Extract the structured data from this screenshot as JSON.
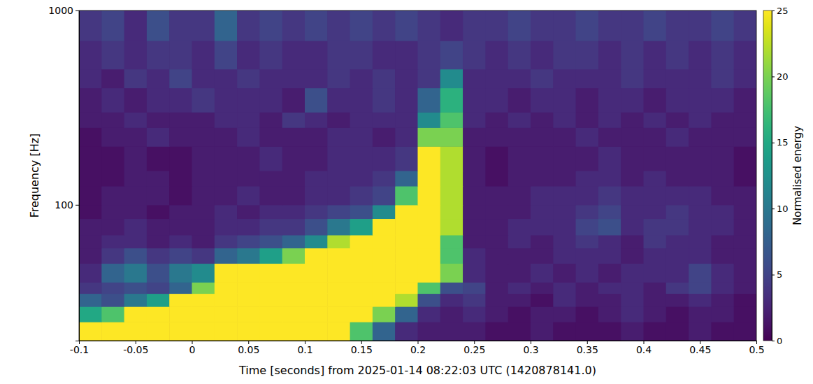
{
  "chart_data": {
    "type": "heatmap",
    "xlabel": "Time [seconds] from 2025-01-14 08:22:03 UTC (1420878141.0)",
    "ylabel": "Frequency [Hz]",
    "log": "y",
    "grid": false,
    "xlim": [
      -0.1,
      0.5
    ],
    "ylim": [
      20,
      1000
    ],
    "xticks": [
      -0.1,
      -0.05,
      0,
      0.05,
      0.1,
      0.15,
      0.2,
      0.25,
      0.3,
      0.35,
      0.4,
      0.45,
      0.5
    ],
    "yticks": [
      100,
      1000
    ],
    "x_edges": [
      -0.1,
      -0.08,
      -0.06,
      -0.04,
      -0.02,
      0,
      0.02,
      0.04,
      0.06,
      0.08,
      0.1,
      0.12,
      0.14,
      0.16,
      0.18,
      0.2,
      0.22,
      0.24,
      0.26,
      0.28,
      0.3,
      0.32,
      0.34,
      0.36,
      0.38,
      0.4,
      0.42,
      0.44,
      0.46,
      0.48,
      0.5
    ],
    "y_edges": [
      20,
      25,
      30,
      35,
      40,
      50,
      60,
      70,
      85,
      100,
      125,
      150,
      200,
      250,
      300,
      400,
      500,
      700,
      1000
    ],
    "z": [
      [
        25,
        25,
        25,
        25,
        25,
        25,
        25,
        25,
        25,
        25,
        25,
        25,
        18,
        8,
        3,
        2,
        2,
        2,
        1,
        1,
        2,
        1,
        1,
        1,
        2,
        1,
        1,
        2,
        1,
        1
      ],
      [
        15,
        18,
        25,
        25,
        25,
        25,
        25,
        25,
        25,
        25,
        25,
        25,
        25,
        20,
        8,
        3,
        2,
        3,
        2,
        1,
        2,
        2,
        1,
        2,
        3,
        2,
        1,
        2,
        2,
        1
      ],
      [
        8,
        6,
        10,
        14,
        25,
        25,
        25,
        25,
        25,
        25,
        25,
        25,
        25,
        25,
        22,
        6,
        3,
        4,
        2,
        2,
        1,
        3,
        2,
        2,
        3,
        2,
        2,
        3,
        2,
        1
      ],
      [
        4,
        5,
        6,
        5,
        8,
        20,
        25,
        25,
        25,
        25,
        25,
        25,
        25,
        25,
        25,
        18,
        6,
        5,
        2,
        3,
        2,
        3,
        2,
        3,
        3,
        2,
        4,
        5,
        3,
        2
      ],
      [
        3,
        8,
        10,
        6,
        10,
        12,
        25,
        25,
        25,
        25,
        25,
        25,
        25,
        25,
        25,
        25,
        20,
        3,
        2,
        2,
        3,
        2,
        3,
        2,
        3,
        3,
        3,
        5,
        3,
        2
      ],
      [
        2,
        4,
        6,
        4,
        5,
        4,
        8,
        10,
        14,
        20,
        25,
        25,
        25,
        25,
        25,
        25,
        18,
        3,
        2,
        2,
        2,
        3,
        3,
        3,
        2,
        3,
        3,
        3,
        2,
        2
      ],
      [
        2,
        3,
        3,
        2,
        3,
        2,
        4,
        5,
        6,
        8,
        12,
        22,
        25,
        25,
        25,
        25,
        18,
        2,
        2,
        3,
        2,
        3,
        4,
        3,
        2,
        4,
        3,
        3,
        2,
        2
      ],
      [
        2,
        2,
        3,
        2,
        2,
        2,
        3,
        3,
        4,
        4,
        6,
        10,
        14,
        25,
        25,
        25,
        22,
        2,
        2,
        3,
        3,
        3,
        5,
        6,
        3,
        4,
        4,
        3,
        3,
        2
      ],
      [
        1,
        2,
        2,
        1,
        2,
        2,
        3,
        2,
        3,
        3,
        4,
        5,
        6,
        12,
        25,
        25,
        22,
        2,
        2,
        2,
        3,
        3,
        4,
        5,
        3,
        3,
        4,
        3,
        3,
        2
      ],
      [
        1,
        2,
        2,
        2,
        1,
        2,
        2,
        3,
        2,
        2,
        3,
        3,
        4,
        5,
        18,
        25,
        22,
        2,
        2,
        2,
        3,
        3,
        3,
        4,
        3,
        3,
        3,
        3,
        2,
        2
      ],
      [
        1,
        1,
        2,
        2,
        1,
        2,
        2,
        2,
        2,
        2,
        3,
        3,
        3,
        4,
        8,
        25,
        22,
        2,
        1,
        2,
        2,
        2,
        3,
        3,
        2,
        3,
        2,
        2,
        2,
        1
      ],
      [
        1,
        1,
        2,
        1,
        1,
        2,
        2,
        2,
        3,
        2,
        2,
        3,
        3,
        3,
        4,
        25,
        22,
        2,
        1,
        2,
        2,
        2,
        2,
        3,
        2,
        2,
        2,
        2,
        2,
        1
      ],
      [
        1,
        2,
        2,
        3,
        2,
        2,
        2,
        3,
        2,
        2,
        2,
        3,
        3,
        2,
        3,
        20,
        20,
        2,
        2,
        2,
        2,
        2,
        3,
        2,
        2,
        2,
        3,
        2,
        2,
        2
      ],
      [
        2,
        2,
        3,
        2,
        2,
        2,
        3,
        3,
        2,
        4,
        3,
        2,
        3,
        3,
        3,
        12,
        18,
        3,
        2,
        3,
        2,
        3,
        2,
        3,
        2,
        3,
        2,
        3,
        2,
        2
      ],
      [
        2,
        3,
        2,
        3,
        3,
        4,
        3,
        3,
        3,
        2,
        6,
        3,
        3,
        4,
        3,
        8,
        16,
        3,
        3,
        2,
        3,
        3,
        2,
        3,
        3,
        2,
        3,
        3,
        3,
        2
      ],
      [
        3,
        2,
        4,
        3,
        5,
        3,
        3,
        4,
        3,
        3,
        3,
        4,
        3,
        4,
        3,
        4,
        12,
        3,
        3,
        3,
        4,
        3,
        3,
        3,
        4,
        3,
        3,
        3,
        4,
        3
      ],
      [
        3,
        4,
        3,
        4,
        4,
        3,
        5,
        3,
        4,
        3,
        3,
        4,
        4,
        3,
        3,
        4,
        5,
        4,
        3,
        4,
        3,
        4,
        4,
        3,
        4,
        3,
        4,
        3,
        4,
        3
      ],
      [
        4,
        5,
        3,
        6,
        4,
        4,
        8,
        4,
        5,
        4,
        5,
        4,
        5,
        4,
        5,
        4,
        3,
        4,
        4,
        5,
        4,
        4,
        5,
        4,
        4,
        5,
        4,
        4,
        5,
        4
      ]
    ],
    "colorbar": {
      "label": "Normalised energy",
      "range": [
        0,
        25
      ],
      "ticks": [
        0,
        5,
        10,
        15,
        20,
        25
      ]
    }
  }
}
